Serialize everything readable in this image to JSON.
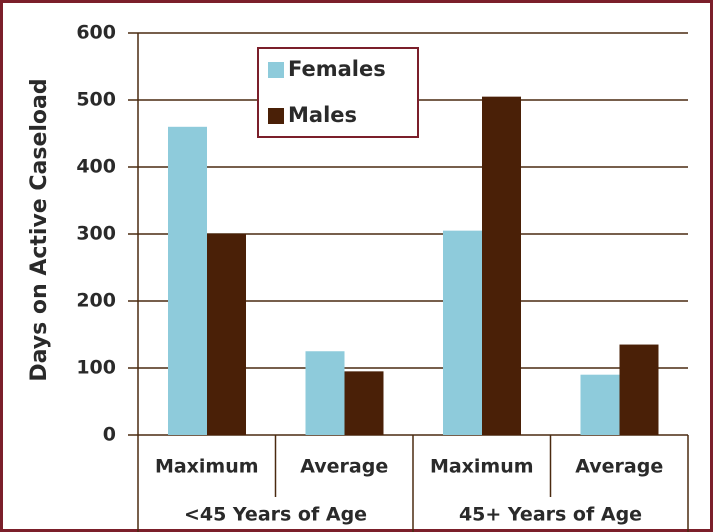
{
  "chart_data": {
    "type": "bar",
    "y_label": "Days on Active Caseload",
    "categories": [
      "Maximum",
      "Average",
      "Maximum",
      "Average"
    ],
    "group_labels": [
      "<45 Years of Age",
      "45+ Years of Age"
    ],
    "series": [
      {
        "name": "Females",
        "color": "#8ecbdb",
        "values": [
          460,
          125,
          305,
          90
        ]
      },
      {
        "name": "Males",
        "color": "#4a2007",
        "values": [
          300,
          95,
          505,
          135
        ]
      }
    ],
    "ylim": [
      0,
      600
    ],
    "yticks": [
      0,
      100,
      200,
      300,
      400,
      500,
      600
    ],
    "grid": true,
    "legend": "top"
  }
}
